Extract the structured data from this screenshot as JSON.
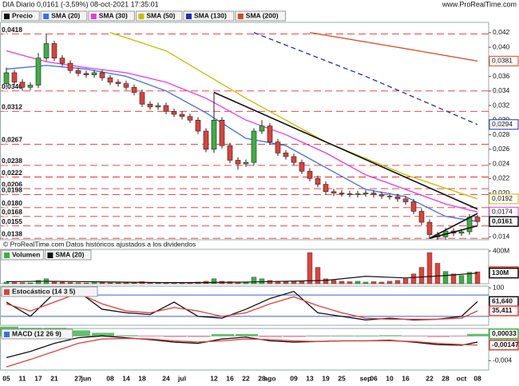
{
  "chart_data": [
    {
      "type": "candlestick",
      "title": "DIA Diario 0,0161 (-3,59%) 08-oct-2021 17:35:01",
      "source": "www.ProRealTime.com",
      "note": "© ProRealTime.com Datos históricos ajustados a los dividendos",
      "price_name": "Precio",
      "price_label": {
        "value": 0.0161,
        "label": "0,0161"
      },
      "up_color": "#3cb043",
      "down_color": "#e0403a",
      "level_color": "#e03030",
      "categories": [
        "05",
        null,
        "11",
        null,
        "17",
        null,
        "21",
        null,
        null,
        "27",
        "jun",
        null,
        null,
        "08",
        null,
        "14",
        null,
        "18",
        null,
        null,
        "24",
        null,
        "jul",
        null,
        null,
        null,
        "12",
        null,
        "16",
        null,
        "22",
        null,
        "28",
        "ago",
        null,
        null,
        "09",
        null,
        "13",
        null,
        "19",
        null,
        "25",
        null,
        null,
        "sep",
        "06",
        null,
        "10",
        null,
        "16",
        null,
        null,
        "22",
        null,
        "28",
        null,
        "oct",
        null,
        "08"
      ],
      "ohlc": [
        [
          0.035,
          0.0372,
          0.0345,
          0.0365
        ],
        [
          0.0365,
          0.0369,
          0.0348,
          0.0352
        ],
        [
          0.0352,
          0.0356,
          0.034,
          0.0345
        ],
        [
          0.0345,
          0.0352,
          0.0341,
          0.0348
        ],
        [
          0.0348,
          0.0392,
          0.0344,
          0.0385
        ],
        [
          0.0385,
          0.0418,
          0.0381,
          0.0405
        ],
        [
          0.0405,
          0.0409,
          0.0381,
          0.0385
        ],
        [
          0.0385,
          0.0389,
          0.0374,
          0.0378
        ],
        [
          0.0378,
          0.0382,
          0.0364,
          0.0368
        ],
        [
          0.0368,
          0.0372,
          0.036,
          0.0364
        ],
        [
          0.0364,
          0.0368,
          0.0358,
          0.0362
        ],
        [
          0.0362,
          0.0369,
          0.0358,
          0.0365
        ],
        [
          0.0365,
          0.0369,
          0.0354,
          0.0358
        ],
        [
          0.0358,
          0.0362,
          0.0348,
          0.0352
        ],
        [
          0.0352,
          0.0356,
          0.0346,
          0.035
        ],
        [
          0.035,
          0.0354,
          0.0341,
          0.0345
        ],
        [
          0.0345,
          0.0349,
          0.0334,
          0.0338
        ],
        [
          0.0338,
          0.0342,
          0.0318,
          0.0322
        ],
        [
          0.0322,
          0.0326,
          0.0314,
          0.0318
        ],
        [
          0.0318,
          0.0324,
          0.0314,
          0.032
        ],
        [
          0.032,
          0.0324,
          0.0308,
          0.0312
        ],
        [
          0.0312,
          0.0316,
          0.0304,
          0.0308
        ],
        [
          0.0308,
          0.0312,
          0.0301,
          0.0305
        ],
        [
          0.0305,
          0.0309,
          0.0296,
          0.03
        ],
        [
          0.03,
          0.0304,
          0.0281,
          0.0285
        ],
        [
          0.0285,
          0.0289,
          0.0256,
          0.026
        ],
        [
          0.026,
          0.0338,
          0.0255,
          0.03
        ],
        [
          0.03,
          0.0304,
          0.0261,
          0.0265
        ],
        [
          0.0265,
          0.0269,
          0.0241,
          0.0245
        ],
        [
          0.0245,
          0.0249,
          0.0232,
          0.024
        ],
        [
          0.024,
          0.0246,
          0.0236,
          0.0242
        ],
        [
          0.0242,
          0.0289,
          0.0238,
          0.0285
        ],
        [
          0.0285,
          0.03,
          0.0281,
          0.0292
        ],
        [
          0.0292,
          0.0296,
          0.0266,
          0.027
        ],
        [
          0.027,
          0.0274,
          0.0251,
          0.0255
        ],
        [
          0.0255,
          0.0259,
          0.0246,
          0.025
        ],
        [
          0.025,
          0.0254,
          0.0238,
          0.0242
        ],
        [
          0.0242,
          0.0246,
          0.0226,
          0.023
        ],
        [
          0.023,
          0.0234,
          0.0216,
          0.022
        ],
        [
          0.022,
          0.0224,
          0.0208,
          0.0212
        ],
        [
          0.0212,
          0.0216,
          0.0198,
          0.0202
        ],
        [
          0.0202,
          0.0206,
          0.0196,
          0.02
        ],
        [
          0.02,
          0.0204,
          0.0195,
          0.0199
        ],
        [
          0.0199,
          0.0203,
          0.0194,
          0.0198
        ],
        [
          0.0198,
          0.0203,
          0.0194,
          0.0199
        ],
        [
          0.0199,
          0.0204,
          0.0195,
          0.02
        ],
        [
          0.02,
          0.0204,
          0.0194,
          0.0198
        ],
        [
          0.0198,
          0.0202,
          0.0192,
          0.0196
        ],
        [
          0.0196,
          0.02,
          0.0191,
          0.0195
        ],
        [
          0.0195,
          0.0199,
          0.0188,
          0.0192
        ],
        [
          0.0192,
          0.0196,
          0.0184,
          0.0188
        ],
        [
          0.0188,
          0.0192,
          0.0171,
          0.0175
        ],
        [
          0.0175,
          0.0179,
          0.0156,
          0.016
        ],
        [
          0.016,
          0.0164,
          0.0138,
          0.0143
        ],
        [
          0.0143,
          0.0147,
          0.0136,
          0.014
        ],
        [
          0.014,
          0.0152,
          0.0136,
          0.0148
        ],
        [
          0.0148,
          0.0152,
          0.0141,
          0.0145
        ],
        [
          0.0145,
          0.0151,
          0.0141,
          0.0147
        ],
        [
          0.0147,
          0.0171,
          0.0143,
          0.0167
        ],
        [
          0.0167,
          0.017,
          0.0155,
          0.0161
        ]
      ],
      "ylim": [
        0.0136,
        0.0434
      ],
      "yticks": [
        {
          "value": 0.042,
          "label": "0,042"
        },
        {
          "value": 0.04,
          "label": "0,040"
        },
        {
          "value": 0.038,
          "label": "0,038"
        },
        {
          "value": 0.036,
          "label": "0,036"
        },
        {
          "value": 0.034,
          "label": "0,034"
        },
        {
          "value": 0.032,
          "label": "0,032"
        },
        {
          "value": 0.03,
          "label": "0,030"
        },
        {
          "value": 0.028,
          "label": "0,028"
        },
        {
          "value": 0.026,
          "label": "0,026"
        },
        {
          "value": 0.024,
          "label": "0,024"
        },
        {
          "value": 0.022,
          "label": "0,022"
        },
        {
          "value": 0.02,
          "label": "0,020"
        },
        {
          "value": 0.014,
          "label": "0,014"
        }
      ],
      "levels": [
        {
          "value": 0.0418,
          "label": "0,0418"
        },
        {
          "value": 0.034,
          "label": "0,0340"
        },
        {
          "value": 0.0312,
          "label": "0,0312"
        },
        {
          "value": 0.0267,
          "label": "0,0267"
        },
        {
          "value": 0.0238,
          "label": "0,0238"
        },
        {
          "value": 0.0222,
          "label": "0,0222"
        },
        {
          "value": 0.0206,
          "label": "0,0206"
        },
        {
          "value": 0.0198,
          "label": "0,0198"
        },
        {
          "value": 0.018,
          "label": "0,0180"
        },
        {
          "value": 0.0168,
          "label": "0,0168"
        },
        {
          "value": 0.0155,
          "label": "0,0155"
        },
        {
          "value": 0.0138,
          "label": "0,0138"
        }
      ],
      "series": [
        {
          "name": "SMA (20)",
          "color": "#3a6fe8",
          "x": [
            0,
            5,
            10,
            15,
            20,
            25,
            30,
            35,
            40,
            45,
            50,
            55,
            59
          ],
          "values": [
            0.037,
            0.0375,
            0.037,
            0.036,
            0.034,
            0.031,
            0.0275,
            0.0265,
            0.0235,
            0.0205,
            0.0195,
            0.0168,
            0.0161
          ],
          "last_label": {
            "value": 0.0161,
            "label": "0,0161"
          }
        },
        {
          "name": "SMA (30)",
          "color": "#e23ce6",
          "x": [
            0,
            5,
            10,
            15,
            20,
            25,
            30,
            35,
            40,
            45,
            50,
            55,
            59
          ],
          "values": [
            0.0395,
            0.038,
            0.0372,
            0.0365,
            0.0352,
            0.033,
            0.03,
            0.028,
            0.0255,
            0.0225,
            0.0205,
            0.0185,
            0.0174
          ],
          "last_label": {
            "value": 0.0174,
            "label": "0,0174"
          }
        },
        {
          "name": "SMA (50)",
          "color": "#c8bc00",
          "x": [
            13,
            20,
            30,
            40,
            50,
            59
          ],
          "values": [
            0.042,
            0.0395,
            0.033,
            0.027,
            0.0225,
            0.0192
          ],
          "last_label": {
            "value": 0.0192,
            "label": "0,0192"
          }
        },
        {
          "name": "SMA (130)",
          "color": "#2030b8",
          "dash": true,
          "x": [
            31,
            45,
            59
          ],
          "values": [
            0.042,
            0.036,
            0.0294
          ],
          "last_label": {
            "value": 0.0294,
            "label": "0,0294"
          }
        },
        {
          "name": "SMA (200)",
          "color": "#d24a22",
          "x": [
            38,
            50,
            59
          ],
          "values": [
            0.042,
            0.0398,
            0.0381
          ],
          "last_label": {
            "value": 0.0381,
            "label": "0,0381"
          }
        }
      ],
      "trendlines": [
        {
          "x": [
            26,
            59
          ],
          "values": [
            0.0338,
            0.0178
          ]
        },
        {
          "x": [
            53,
            59
          ],
          "values": [
            0.0138,
            0.0172
          ]
        },
        {
          "x": [
            53,
            59
          ],
          "values": [
            0.0138,
            0.0155
          ]
        }
      ],
      "trendline_color": "#111"
    },
    {
      "type": "bar",
      "ylim": [
        0,
        420
      ],
      "yticks": [
        {
          "value": 400,
          "label": "400M"
        }
      ],
      "series": [
        {
          "name": "Volumen",
          "color": "#d03030",
          "values": [
            20,
            15,
            12,
            10,
            40,
            60,
            30,
            20,
            15,
            12,
            10,
            12,
            14,
            10,
            10,
            12,
            15,
            25,
            15,
            10,
            12,
            10,
            10,
            12,
            20,
            30,
            60,
            30,
            25,
            20,
            15,
            80,
            60,
            40,
            30,
            25,
            25,
            30,
            380,
            200,
            60,
            40,
            30,
            25,
            30,
            20,
            25,
            20,
            30,
            40,
            60,
            120,
            200,
            380,
            250,
            150,
            120,
            100,
            140,
            146
          ],
          "last_label": {
            "value": 146,
            "label": "146M"
          }
        },
        {
          "name": "SMA (20)",
          "color": "#111",
          "x": [
            0,
            5,
            10,
            15,
            20,
            25,
            30,
            35,
            40,
            45,
            50,
            55,
            59
          ],
          "values": [
            25,
            30,
            25,
            18,
            14,
            15,
            20,
            30,
            40,
            90,
            70,
            100,
            130
          ],
          "last_label": {
            "value": 130,
            "label": "130M"
          }
        }
      ]
    },
    {
      "type": "line",
      "name": "Estocástico (14 3 5)",
      "ylim": [
        -5,
        105
      ],
      "yticks": [
        100
      ],
      "bands": [
        80,
        20
      ],
      "band_color": "#3a5fd0",
      "series": [
        {
          "color": "#111",
          "x": [
            0,
            3,
            6,
            9,
            12,
            15,
            18,
            21,
            24,
            27,
            30,
            33,
            36,
            39,
            42,
            45,
            48,
            51,
            54,
            57,
            59
          ],
          "values": [
            60,
            20,
            85,
            90,
            40,
            30,
            25,
            60,
            20,
            15,
            40,
            70,
            90,
            30,
            20,
            10,
            15,
            10,
            12,
            20,
            61.64
          ],
          "last_label": {
            "value": 61.64,
            "label": "61,640"
          }
        },
        {
          "color": "#e0403a",
          "x": [
            0,
            3,
            6,
            9,
            12,
            15,
            18,
            21,
            24,
            27,
            30,
            33,
            36,
            39,
            42,
            45,
            48,
            51,
            54,
            57,
            59
          ],
          "values": [
            55,
            35,
            60,
            85,
            55,
            35,
            30,
            45,
            35,
            20,
            30,
            55,
            75,
            50,
            30,
            15,
            12,
            12,
            12,
            15,
            35.411
          ],
          "last_label": {
            "value": 35.411,
            "label": "35,411"
          }
        }
      ]
    },
    {
      "type": "macd",
      "name": "MACD (12 26 9)",
      "ylim": [
        -0.0055,
        0.0012
      ],
      "yticks": [
        {
          "value": -0.004,
          "label": "-0,004"
        }
      ],
      "histogram": {
        "color": "#3cb043",
        "negative_color": "#f08aa0",
        "x": [
          0,
          3,
          6,
          9,
          12,
          15,
          18,
          21,
          24,
          27,
          30,
          33,
          36,
          39,
          42,
          45,
          48,
          51,
          54,
          57,
          59
        ],
        "values": [
          0.0015,
          0.0013,
          0.0013,
          0.0009,
          0.0005,
          0.0001,
          -0.0001,
          -0.0002,
          -0.0002,
          0.0003,
          0.0003,
          -0.0002,
          -0.0002,
          0.0,
          0.0,
          0.0,
          0.0001,
          -0.0001,
          -0.0002,
          -0.0001,
          0.00033
        ],
        "last_label": {
          "value": 0.00033,
          "label": "0,00033"
        }
      },
      "series": [
        {
          "color": "#111",
          "x": [
            0,
            3,
            6,
            9,
            12,
            15,
            18,
            21,
            24,
            27,
            30,
            33,
            36,
            39,
            42,
            45,
            48,
            51,
            54,
            57,
            59
          ],
          "values": [
            -0.0035,
            -0.0025,
            -0.0012,
            -0.0003,
            0.0,
            -0.0003,
            -0.0006,
            -0.001,
            -0.0012,
            -0.0005,
            -0.0002,
            -0.0008,
            -0.001,
            -0.0009,
            -0.0008,
            -0.0008,
            -0.0007,
            -0.001,
            -0.0014,
            -0.0015,
            -0.001
          ]
        },
        {
          "color": "#e0403a",
          "x": [
            0,
            3,
            6,
            9,
            12,
            15,
            18,
            21,
            24,
            27,
            30,
            33,
            36,
            39,
            42,
            45,
            48,
            51,
            54,
            57,
            59
          ],
          "values": [
            -0.005,
            -0.0038,
            -0.0025,
            -0.0012,
            -0.0005,
            -0.0004,
            -0.0005,
            -0.0008,
            -0.001,
            -0.0008,
            -0.0005,
            -0.0006,
            -0.0008,
            -0.0009,
            -0.0008,
            -0.0008,
            -0.0008,
            -0.0009,
            -0.0012,
            -0.0014,
            -0.00147
          ],
          "last_label": {
            "value": -0.00147,
            "label": "-0,00147"
          }
        }
      ]
    }
  ]
}
